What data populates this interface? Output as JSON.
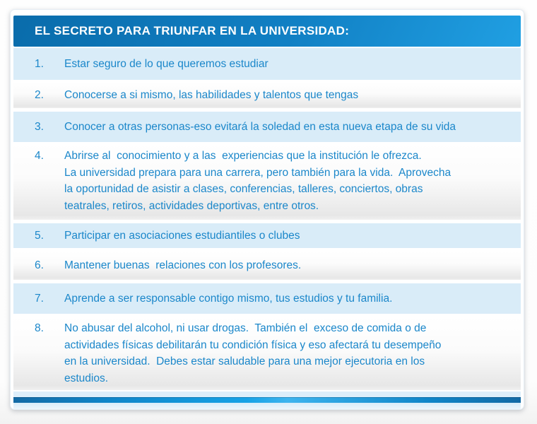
{
  "card": {
    "header": {
      "title": "EL SECRETO PARA TRIUNFAR EN LA UNIVERSIDAD:"
    },
    "items": [
      {
        "number": "1.",
        "text": "Estar seguro de lo que queremos estudiar"
      },
      {
        "number": "2.",
        "text": "Conocerse a si mismo, las habilidades y talentos que tengas"
      },
      {
        "number": "3.",
        "text": "Conocer a otras personas-eso evitará la soledad en esta nueva etapa de su vida"
      },
      {
        "number": "4.",
        "text": "Abrirse al  conocimiento y a las  experiencias que la institución le ofrezca.\nLa universidad prepara para una carrera, pero también para la vida.  Aprovecha\nla oportunidad de asistir a clases, conferencias, talleres, conciertos, obras\nteatrales, retiros, actividades deportivas, entre otros."
      },
      {
        "number": "5.",
        "text": "Participar en asociaciones estudiantiles o clubes"
      },
      {
        "number": "6.",
        "text": "Mantener buenas  relaciones con los profesores."
      },
      {
        "number": "7.",
        "text": "Aprende a ser responsable contigo mismo, tus estudios y tu familia."
      },
      {
        "number": "8.",
        "text": "No abusar del alcohol, ni usar drogas.  También el  exceso de comida o de\nactividades físicas debilitarán tu condición física y eso afectará tu desempeño\nen la universidad.  Debes estar saludable para una mejor ejecutoria en los\nestudios."
      }
    ],
    "colors": {
      "header_blue_dark": "#0a6cab",
      "header_blue_light": "#209fe2",
      "row_light_blue": "#d9ecf8",
      "item_text_blue": "#1b87ca",
      "footer_bar_blue": "#16a2e6"
    }
  }
}
